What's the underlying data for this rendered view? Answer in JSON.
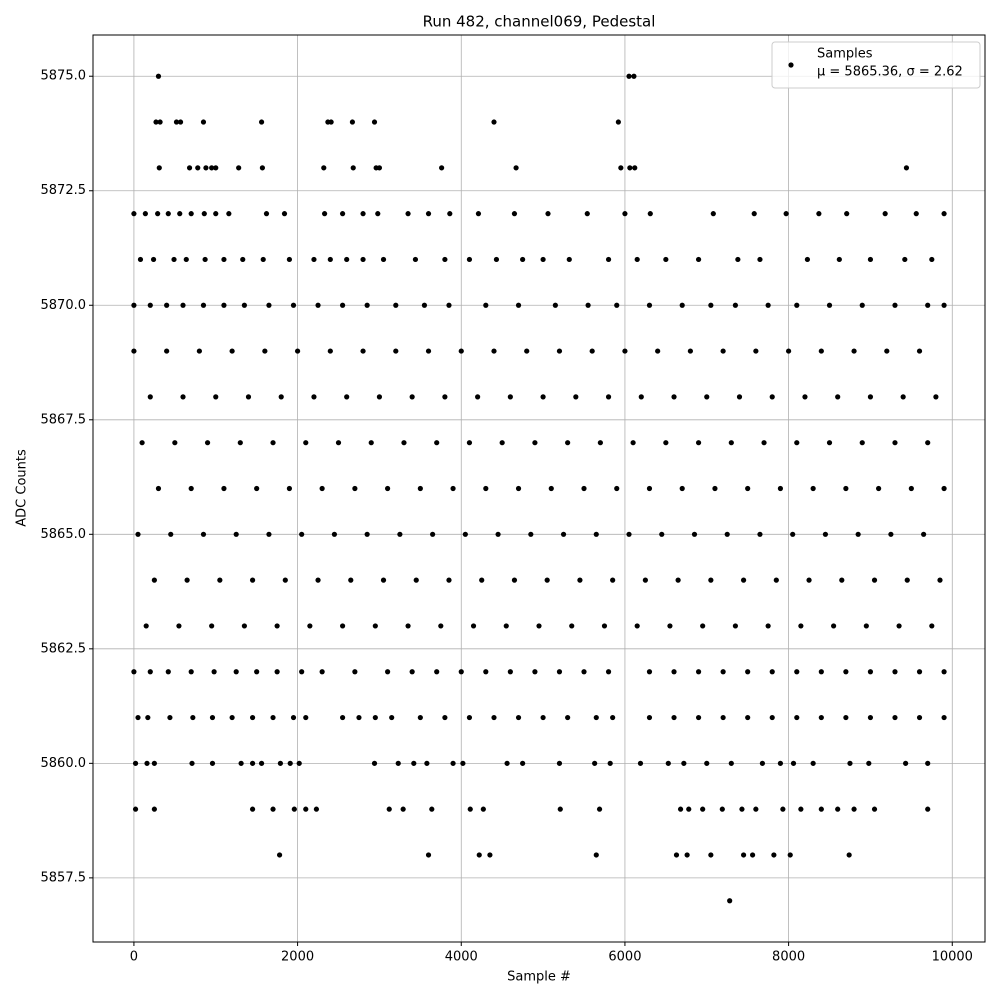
{
  "chart_data": {
    "type": "scatter",
    "title": "Run 482, channel069, Pedestal",
    "xlabel": "Sample #",
    "ylabel": "ADC Counts",
    "xlim": [
      -500,
      10400
    ],
    "ylim": [
      5856.1,
      5875.9
    ],
    "xticks": [
      0,
      2000,
      4000,
      6000,
      8000,
      10000
    ],
    "yticks": [
      {
        "value": 5857.5,
        "label": "5857.5"
      },
      {
        "value": 5860,
        "label": "5860.0"
      },
      {
        "value": 5862.5,
        "label": "5862.5"
      },
      {
        "value": 5865,
        "label": "5865.0"
      },
      {
        "value": 5867.5,
        "label": "5867.5"
      },
      {
        "value": 5870,
        "label": "5870.0"
      },
      {
        "value": 5872.5,
        "label": "5872.5"
      },
      {
        "value": 5875,
        "label": "5875.0"
      }
    ],
    "grid": true,
    "legend": "upper right",
    "series": [
      {
        "name": "Samples",
        "color": "#000000",
        "annotation": "μ = 5865.36, σ = 2.62",
        "x": [
          300,
          6050,
          6110,
          270,
          320,
          520,
          570,
          850,
          1560,
          2370,
          2410,
          2670,
          2940,
          4400,
          5920,
          310,
          680,
          780,
          880,
          950,
          1000,
          1280,
          1570,
          2320,
          2680,
          2960,
          3000,
          3760,
          4670,
          5950,
          6060,
          6120,
          9440,
          0,
          140,
          290,
          420,
          560,
          700,
          860,
          1000,
          1160,
          1620,
          1840,
          2330,
          2550,
          2800,
          2980,
          3350,
          3600,
          3860,
          4210,
          4650,
          5060,
          5540,
          6000,
          6310,
          7080,
          7580,
          7970,
          8370,
          8710,
          9180,
          9560,
          9900,
          80,
          240,
          490,
          640,
          870,
          1100,
          1330,
          1580,
          1900,
          2200,
          2400,
          2600,
          2800,
          3050,
          3440,
          3800,
          4100,
          4430,
          4750,
          5000,
          5320,
          5800,
          6150,
          6500,
          6900,
          7380,
          7650,
          8230,
          8620,
          9000,
          9420,
          9750,
          0,
          200,
          400,
          600,
          850,
          1100,
          1350,
          1650,
          1950,
          2250,
          2550,
          2850,
          3200,
          3550,
          3850,
          4300,
          4700,
          5150,
          5550,
          5900,
          6300,
          6700,
          7050,
          7350,
          7750,
          8100,
          8500,
          8900,
          9300,
          9700,
          9900,
          0,
          400,
          800,
          1200,
          1600,
          2000,
          2400,
          2800,
          3200,
          3600,
          4000,
          4400,
          4800,
          5200,
          5600,
          6000,
          6400,
          6800,
          7200,
          7600,
          8000,
          8400,
          8800,
          9200,
          9600,
          200,
          600,
          1000,
          1400,
          1800,
          2200,
          2600,
          3000,
          3400,
          3800,
          4200,
          4600,
          5000,
          5400,
          5800,
          6200,
          6600,
          7000,
          7400,
          7800,
          8200,
          8600,
          9000,
          9400,
          9800,
          100,
          500,
          900,
          1300,
          1700,
          2100,
          2500,
          2900,
          3300,
          3700,
          4100,
          4500,
          4900,
          5300,
          5700,
          6100,
          6500,
          6900,
          7300,
          7700,
          8100,
          8500,
          8900,
          9300,
          9700,
          300,
          700,
          1100,
          1500,
          1900,
          2300,
          2700,
          3100,
          3500,
          3900,
          4300,
          4700,
          5100,
          5500,
          5900,
          6300,
          6700,
          7100,
          7500,
          7900,
          8300,
          8700,
          9100,
          9500,
          9900,
          50,
          450,
          850,
          1250,
          1650,
          2050,
          2450,
          2850,
          3250,
          3650,
          4050,
          4450,
          4850,
          5250,
          5650,
          6050,
          6450,
          6850,
          7250,
          7650,
          8050,
          8450,
          8850,
          9250,
          9650,
          250,
          650,
          1050,
          1450,
          1850,
          2250,
          2650,
          3050,
          3450,
          3850,
          4250,
          4650,
          5050,
          5450,
          5850,
          6250,
          6650,
          7050,
          7450,
          7850,
          8250,
          8650,
          9050,
          9450,
          9850,
          150,
          550,
          950,
          1350,
          1750,
          2150,
          2550,
          2950,
          3350,
          3750,
          4150,
          4550,
          4950,
          5350,
          5750,
          6150,
          6550,
          6950,
          7350,
          7750,
          8150,
          8550,
          8950,
          9350,
          9750,
          0,
          200,
          420,
          700,
          980,
          1250,
          1500,
          1750,
          2050,
          2300,
          2700,
          3100,
          3400,
          3700,
          4000,
          4300,
          4600,
          4900,
          5200,
          5500,
          5800,
          6300,
          6600,
          6900,
          7200,
          7500,
          7800,
          8100,
          8400,
          8700,
          9000,
          9300,
          9600,
          9900,
          50,
          170,
          440,
          720,
          960,
          1200,
          1450,
          1700,
          1950,
          2100,
          2550,
          2750,
          2950,
          3150,
          3500,
          3800,
          4100,
          4400,
          4700,
          5000,
          5300,
          5650,
          5850,
          6300,
          6600,
          6900,
          7200,
          7500,
          7800,
          8100,
          8400,
          8700,
          9000,
          9300,
          9600,
          9900,
          20,
          160,
          250,
          710,
          960,
          1310,
          1450,
          1560,
          1790,
          1910,
          2020,
          2940,
          3230,
          3420,
          3580,
          3900,
          4020,
          4560,
          4750,
          5200,
          5630,
          5820,
          6190,
          6530,
          6720,
          7000,
          7300,
          7680,
          7900,
          8060,
          8300,
          8750,
          8980,
          9430,
          9700,
          20,
          250,
          1450,
          1700,
          1960,
          2100,
          2230,
          3120,
          3290,
          3640,
          4110,
          4270,
          5210,
          5690,
          6680,
          6780,
          6950,
          7190,
          7430,
          7600,
          7930,
          8150,
          8400,
          8600,
          8800,
          9050,
          9700,
          1780,
          3600,
          4220,
          4350,
          5650,
          6630,
          6760,
          7050,
          7450,
          7560,
          7820,
          8020,
          8740,
          7280
        ],
        "values": [
          5875,
          5875,
          5875,
          5874,
          5874,
          5874,
          5874,
          5874,
          5874,
          5874,
          5874,
          5874,
          5874,
          5874,
          5874,
          5873,
          5873,
          5873,
          5873,
          5873,
          5873,
          5873,
          5873,
          5873,
          5873,
          5873,
          5873,
          5873,
          5873,
          5873,
          5873,
          5873,
          5873,
          5872,
          5872,
          5872,
          5872,
          5872,
          5872,
          5872,
          5872,
          5872,
          5872,
          5872,
          5872,
          5872,
          5872,
          5872,
          5872,
          5872,
          5872,
          5872,
          5872,
          5872,
          5872,
          5872,
          5872,
          5872,
          5872,
          5872,
          5872,
          5872,
          5872,
          5872,
          5872,
          5871,
          5871,
          5871,
          5871,
          5871,
          5871,
          5871,
          5871,
          5871,
          5871,
          5871,
          5871,
          5871,
          5871,
          5871,
          5871,
          5871,
          5871,
          5871,
          5871,
          5871,
          5871,
          5871,
          5871,
          5871,
          5871,
          5871,
          5871,
          5871,
          5871,
          5871,
          5871,
          5870,
          5870,
          5870,
          5870,
          5870,
          5870,
          5870,
          5870,
          5870,
          5870,
          5870,
          5870,
          5870,
          5870,
          5870,
          5870,
          5870,
          5870,
          5870,
          5870,
          5870,
          5870,
          5870,
          5870,
          5870,
          5870,
          5870,
          5870,
          5870,
          5870,
          5870,
          5869,
          5869,
          5869,
          5869,
          5869,
          5869,
          5869,
          5869,
          5869,
          5869,
          5869,
          5869,
          5869,
          5869,
          5869,
          5869,
          5869,
          5869,
          5869,
          5869,
          5869,
          5869,
          5869,
          5869,
          5869,
          5868,
          5868,
          5868,
          5868,
          5868,
          5868,
          5868,
          5868,
          5868,
          5868,
          5868,
          5868,
          5868,
          5868,
          5868,
          5868,
          5868,
          5868,
          5868,
          5868,
          5868,
          5868,
          5868,
          5868,
          5868,
          5867,
          5867,
          5867,
          5867,
          5867,
          5867,
          5867,
          5867,
          5867,
          5867,
          5867,
          5867,
          5867,
          5867,
          5867,
          5867,
          5867,
          5867,
          5867,
          5867,
          5867,
          5867,
          5867,
          5867,
          5867,
          5866,
          5866,
          5866,
          5866,
          5866,
          5866,
          5866,
          5866,
          5866,
          5866,
          5866,
          5866,
          5866,
          5866,
          5866,
          5866,
          5866,
          5866,
          5866,
          5866,
          5866,
          5866,
          5866,
          5866,
          5866,
          5865,
          5865,
          5865,
          5865,
          5865,
          5865,
          5865,
          5865,
          5865,
          5865,
          5865,
          5865,
          5865,
          5865,
          5865,
          5865,
          5865,
          5865,
          5865,
          5865,
          5865,
          5865,
          5865,
          5865,
          5865,
          5864,
          5864,
          5864,
          5864,
          5864,
          5864,
          5864,
          5864,
          5864,
          5864,
          5864,
          5864,
          5864,
          5864,
          5864,
          5864,
          5864,
          5864,
          5864,
          5864,
          5864,
          5864,
          5864,
          5864,
          5864,
          5863,
          5863,
          5863,
          5863,
          5863,
          5863,
          5863,
          5863,
          5863,
          5863,
          5863,
          5863,
          5863,
          5863,
          5863,
          5863,
          5863,
          5863,
          5863,
          5863,
          5863,
          5863,
          5863,
          5863,
          5863,
          5862,
          5862,
          5862,
          5862,
          5862,
          5862,
          5862,
          5862,
          5862,
          5862,
          5862,
          5862,
          5862,
          5862,
          5862,
          5862,
          5862,
          5862,
          5862,
          5862,
          5862,
          5862,
          5862,
          5862,
          5862,
          5862,
          5862,
          5862,
          5862,
          5862,
          5862,
          5862,
          5862,
          5862,
          5861,
          5861,
          5861,
          5861,
          5861,
          5861,
          5861,
          5861,
          5861,
          5861,
          5861,
          5861,
          5861,
          5861,
          5861,
          5861,
          5861,
          5861,
          5861,
          5861,
          5861,
          5861,
          5861,
          5861,
          5861,
          5861,
          5861,
          5861,
          5861,
          5861,
          5861,
          5861,
          5861,
          5861,
          5861,
          5861,
          5860,
          5860,
          5860,
          5860,
          5860,
          5860,
          5860,
          5860,
          5860,
          5860,
          5860,
          5860,
          5860,
          5860,
          5860,
          5860,
          5860,
          5860,
          5860,
          5860,
          5860,
          5860,
          5860,
          5860,
          5860,
          5860,
          5860,
          5860,
          5860,
          5860,
          5860,
          5860,
          5860,
          5860,
          5860,
          5859,
          5859,
          5859,
          5859,
          5859,
          5859,
          5859,
          5859,
          5859,
          5859,
          5859,
          5859,
          5859,
          5859,
          5859,
          5859,
          5859,
          5859,
          5859,
          5859,
          5859,
          5859,
          5859,
          5859,
          5859,
          5859,
          5859,
          5858,
          5858,
          5858,
          5858,
          5858,
          5858,
          5858,
          5858,
          5858,
          5858,
          5858,
          5858,
          5858,
          5857
        ]
      }
    ]
  }
}
